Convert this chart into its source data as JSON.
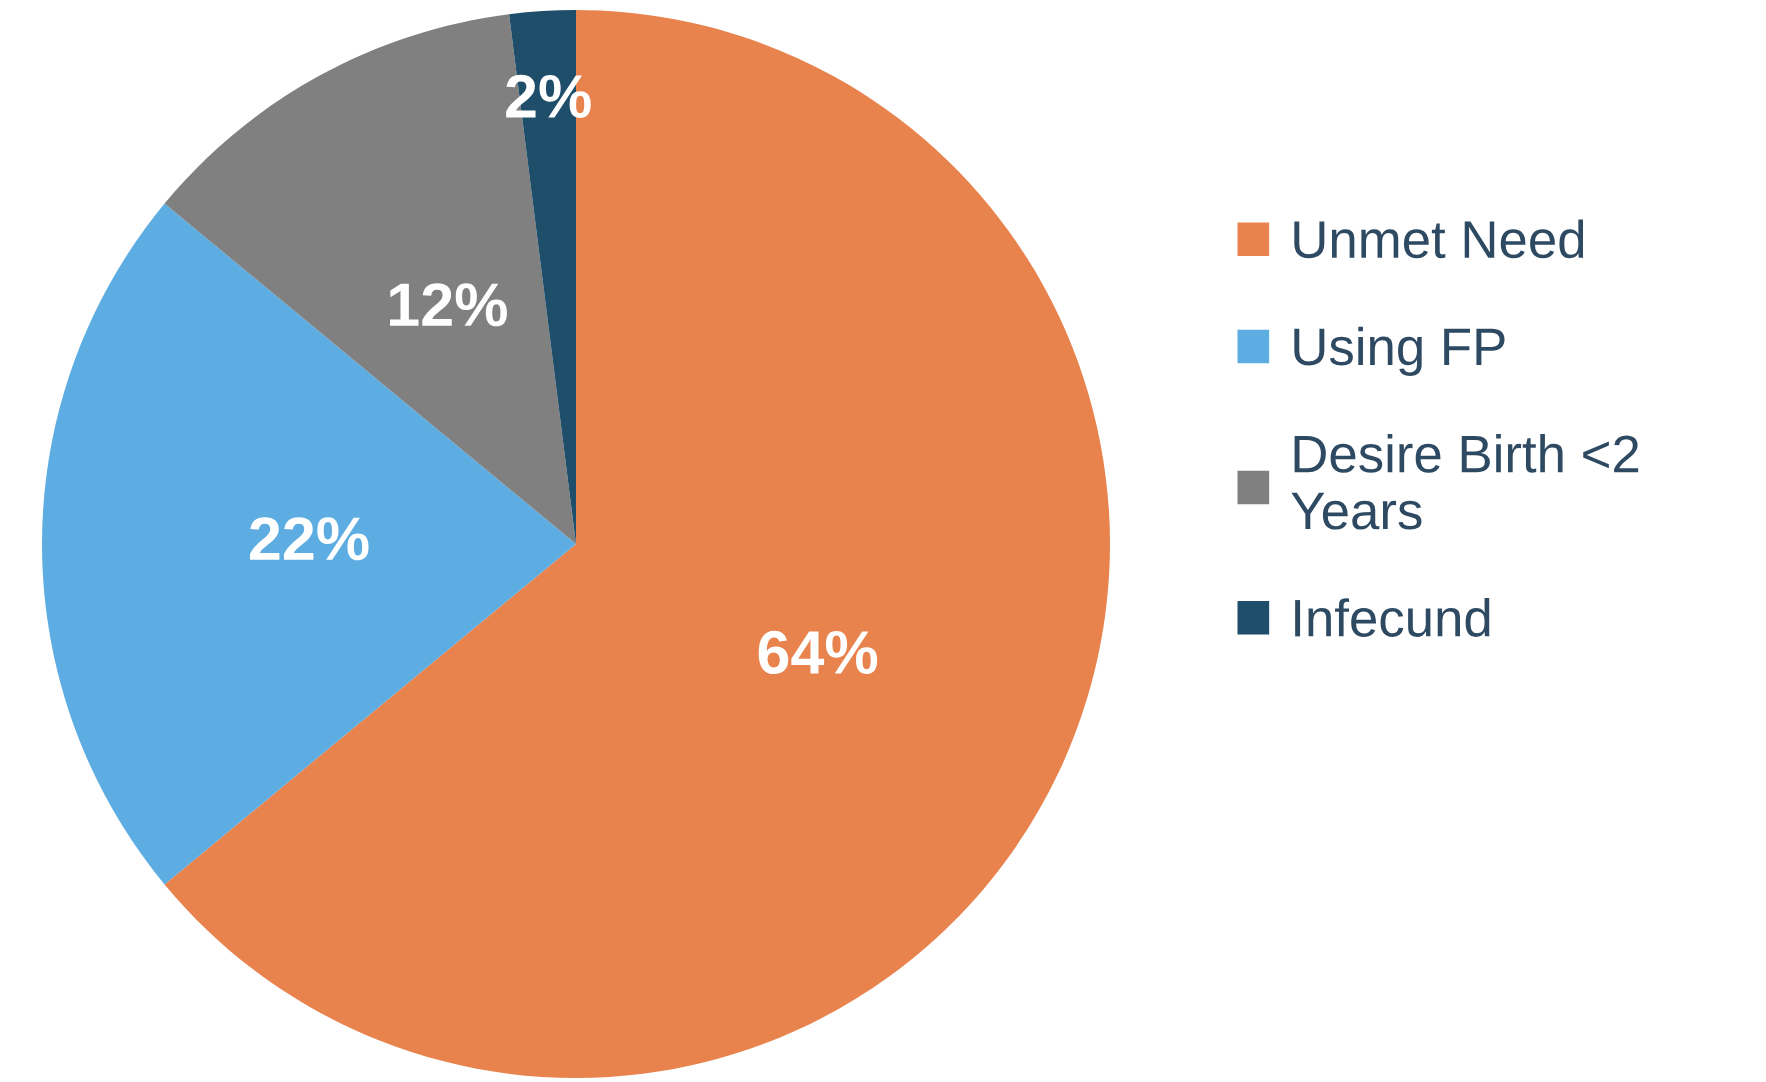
{
  "chart_data": {
    "type": "pie",
    "categories": [
      "Unmet Need",
      "Using FP",
      "Desire Birth <2\nYears",
      "Infecund"
    ],
    "values": [
      64,
      22,
      12,
      2
    ],
    "colors": [
      "#e8834e",
      "#5dade2",
      "#808080",
      "#1f4e6b"
    ],
    "value_labels": [
      "64%",
      "22%",
      "12%",
      "2%"
    ],
    "legend": "right"
  }
}
